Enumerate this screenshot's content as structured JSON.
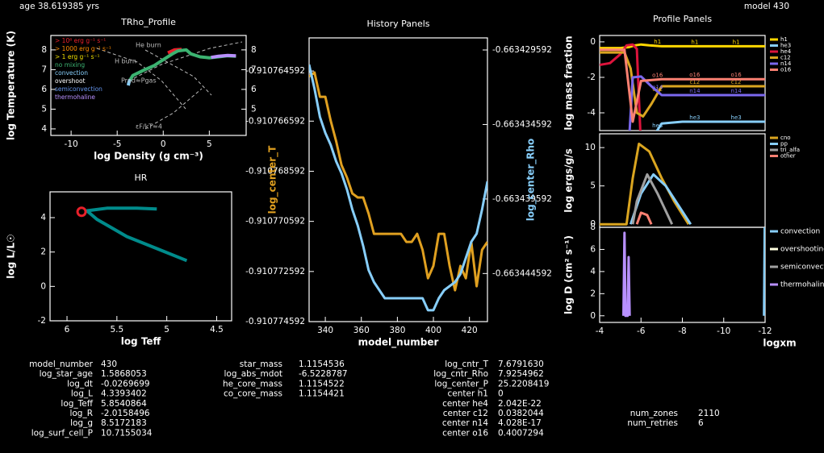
{
  "header": {
    "age": "age 38.619385 yrs",
    "model": "model 430"
  },
  "chart_data": [
    {
      "type": "line",
      "title": "TRho_Profile",
      "xlabel": "log Density (g cm⁻³)",
      "ylabel": "log Temperature (K)",
      "xlim": [
        -12.2,
        9
      ],
      "ylim": [
        3.67,
        8.73
      ],
      "xticks": [
        -10,
        -5,
        0,
        5
      ],
      "yticks": [
        4,
        5,
        6,
        7,
        8
      ],
      "y2lim": [
        3.67,
        8.73
      ],
      "y2ticks": [
        8,
        7,
        6,
        5
      ],
      "legend": "upper left",
      "annotations": [
        "He burn",
        "H burn",
        "Prad≈Pgas",
        "εF/kT≈4"
      ],
      "series": [
        {
          "name": "> 10⁶ erg g⁻¹ s⁻¹",
          "color": "#e8202a",
          "x": [
            0.5,
            1.2,
            2.0
          ],
          "values": [
            7.85,
            8.0,
            8.03
          ]
        },
        {
          "name": "> 1000 erg g⁻¹ s⁻¹",
          "color": "#ff8c00",
          "x": [],
          "values": []
        },
        {
          "name": "> 1 erg g⁻¹ s⁻¹",
          "color": "#f0e000",
          "x": [],
          "values": []
        },
        {
          "name": "no mixing",
          "color": "#3cb371",
          "x": [
            -3.7,
            -3.3,
            -2,
            -1,
            0,
            1,
            1.6,
            2.5,
            3,
            4,
            5,
            6,
            7,
            7.9
          ],
          "values": [
            6.4,
            6.7,
            7.0,
            7.2,
            7.5,
            7.8,
            7.95,
            8.0,
            7.8,
            7.65,
            7.6,
            7.65,
            7.7,
            7.68
          ]
        },
        {
          "name": "convection",
          "color": "#87cefa",
          "x": [
            -3.8,
            -3.7,
            -3.6
          ],
          "values": [
            6.2,
            6.4,
            6.5
          ]
        },
        {
          "name": "overshoot",
          "color": "#ffffff",
          "x": [],
          "values": []
        },
        {
          "name": "semiconvection",
          "color": "#6495ed",
          "x": [],
          "values": []
        },
        {
          "name": "thermohaline",
          "color": "#b890ff",
          "x": [
            5.2,
            6,
            7,
            7.9
          ],
          "values": [
            7.62,
            7.68,
            7.72,
            7.7
          ]
        }
      ]
    },
    {
      "type": "line",
      "title": "HR",
      "xlabel": "log Teff",
      "ylabel": "log L/L☉",
      "xlim": [
        6.17,
        4.35
      ],
      "ylim": [
        -2,
        5.5
      ],
      "xticks": [
        6,
        5.5,
        5,
        4.5
      ],
      "yticks": [
        -2,
        0,
        2,
        4
      ],
      "series": [
        {
          "color": "#008b8b",
          "x": [
            4.8,
            5.1,
            5.4,
            5.7,
            5.8,
            5.6,
            5.3,
            5.1
          ],
          "values": [
            1.5,
            2.2,
            2.9,
            3.9,
            4.4,
            4.55,
            4.55,
            4.5
          ]
        },
        {
          "color": "#e8202a",
          "marker": "circle",
          "x": [
            5.854
          ],
          "values": [
            4.339
          ]
        }
      ]
    },
    {
      "type": "line",
      "title": "History Panels",
      "xlabel": "model_number",
      "ylabel": "log_center_T",
      "y2label": "log_center_Rho",
      "xlim": [
        331,
        430
      ],
      "ylim": [
        -0.910774592,
        -0.91076327
      ],
      "y2lim": [
        -0.66344782,
        -0.66342878
      ],
      "xticks": [
        340,
        360,
        380,
        400,
        420
      ],
      "yticks": [
        -0.910764592,
        -0.910766592,
        -0.910768592,
        -0.910770592,
        -0.910772592,
        -0.910774592
      ],
      "y2ticks": [
        -0.663429592,
        -0.663434592,
        -0.663439592,
        -0.663444592
      ],
      "series": [
        {
          "name": "log_center_T",
          "color": "#e0a020",
          "x": [
            331,
            334,
            337,
            340,
            343,
            346,
            349,
            352,
            355,
            358,
            361,
            364,
            367,
            370,
            373,
            376,
            379,
            382,
            385,
            388,
            391,
            394,
            397,
            400,
            403,
            406,
            409,
            412,
            415,
            418,
            421,
            424,
            427,
            430
          ],
          "values": [
            -0.91076481,
            -0.91076465,
            -0.91076562,
            -0.91076562,
            -0.91076658,
            -0.91076739,
            -0.91076835,
            -0.91076884,
            -0.91076948,
            -0.91076964,
            -0.91076964,
            -0.91077028,
            -0.91077109,
            -0.91077109,
            -0.91077109,
            -0.91077109,
            -0.91077109,
            -0.91077109,
            -0.91077141,
            -0.91077141,
            -0.91077109,
            -0.91077173,
            -0.91077286,
            -0.91077237,
            -0.91077109,
            -0.91077109,
            -0.91077237,
            -0.91077334,
            -0.91077237,
            -0.91077286,
            -0.91077141,
            -0.91077318,
            -0.91077173,
            -0.91077141
          ]
        },
        {
          "name": "log_center_Rho",
          "color": "#87cefa",
          "axis": "y2",
          "x": [
            331,
            334,
            337,
            340,
            343,
            346,
            349,
            352,
            355,
            358,
            361,
            364,
            367,
            370,
            373,
            376,
            379,
            382,
            385,
            388,
            391,
            394,
            397,
            400,
            403,
            406,
            409,
            412,
            415,
            418,
            421,
            424,
            427,
            430
          ],
          "values": [
            -0.66343057,
            -0.66343219,
            -0.66343408,
            -0.66343516,
            -0.66343597,
            -0.66343706,
            -0.66343787,
            -0.66343895,
            -0.6634403,
            -0.66344138,
            -0.66344274,
            -0.66344436,
            -0.66344517,
            -0.66344571,
            -0.66344625,
            -0.66344625,
            -0.66344625,
            -0.66344625,
            -0.66344625,
            -0.66344625,
            -0.66344625,
            -0.66344625,
            -0.66344706,
            -0.66344706,
            -0.66344625,
            -0.66344571,
            -0.66344544,
            -0.66344517,
            -0.66344463,
            -0.66344355,
            -0.66344247,
            -0.66344192,
            -0.6634403,
            -0.66343841
          ]
        }
      ]
    },
    {
      "type": "line",
      "title": "Profile Panels",
      "ylabel": "log mass fraction",
      "xlim": [
        -4,
        -12
      ],
      "ylim": [
        -5,
        0.36
      ],
      "yticks": [
        0,
        -2,
        -4
      ],
      "legend": "right",
      "line_labels": true,
      "series": [
        {
          "name": "h1",
          "color": "#ffd700",
          "x": [
            -4,
            -5,
            -5.4,
            -5.7,
            -6.0,
            -6.4,
            -7,
            -12
          ],
          "values": [
            -0.35,
            -0.35,
            -0.3,
            -0.2,
            -0.15,
            -0.2,
            -0.25,
            -0.25
          ]
        },
        {
          "name": "he3",
          "color": "#87cefa",
          "x": [
            -4,
            -6,
            -6.5,
            -7,
            -8,
            -12
          ],
          "values": [
            -6,
            -6,
            -5.5,
            -4.6,
            -4.5,
            -4.5
          ]
        },
        {
          "name": "he4",
          "color": "#dc143c",
          "x": [
            -4,
            -4.5,
            -5,
            -5.3,
            -5.6,
            -5.8,
            -6.0
          ],
          "values": [
            -1.3,
            -1.2,
            -0.7,
            -0.2,
            -0.15,
            -0.4,
            -6
          ]
        },
        {
          "name": "c12",
          "color": "#daa520",
          "x": [
            -4,
            -5.2,
            -5.5,
            -5.8,
            -6.1,
            -6.5,
            -7,
            -12
          ],
          "values": [
            -0.6,
            -0.6,
            -1.5,
            -4,
            -4.2,
            -3.5,
            -2.5,
            -2.5
          ]
        },
        {
          "name": "n14",
          "color": "#7b68ee",
          "x": [
            -4,
            -5.4,
            -5.6,
            -6,
            -6.5,
            -7,
            -12
          ],
          "values": [
            -6,
            -6,
            -2,
            -1.95,
            -2.5,
            -3,
            -3
          ]
        },
        {
          "name": "o16",
          "color": "#fa8072",
          "x": [
            -4,
            -5.2,
            -5.6,
            -6,
            -7,
            -12
          ],
          "values": [
            -0.45,
            -0.45,
            -4.5,
            -2.2,
            -2.1,
            -2.1
          ]
        }
      ]
    },
    {
      "type": "line",
      "ylabel": "log ergs/g/s",
      "xlim": [
        -4,
        -12
      ],
      "ylim": [
        -0.4,
        11.8
      ],
      "yticks": [
        0,
        5,
        10
      ],
      "legend": "right",
      "series": [
        {
          "name": "cno",
          "color": "#daa520",
          "x": [
            -4,
            -5.3,
            -5.6,
            -5.9,
            -6.4,
            -7,
            -7.6,
            -8.3
          ],
          "values": [
            0,
            0,
            6,
            10.5,
            9.5,
            6,
            3,
            0
          ]
        },
        {
          "name": "pp",
          "color": "#87cefa",
          "x": [
            -5.5,
            -6,
            -6.6,
            -7.2,
            -7.8,
            -8.4
          ],
          "values": [
            0,
            4,
            6.5,
            5,
            2.5,
            0
          ]
        },
        {
          "name": "tri_alfa",
          "color": "#a0a0a0",
          "x": [
            -5.6,
            -5.8,
            -6.3,
            -6.8,
            -7.5
          ],
          "values": [
            0,
            3,
            6.5,
            4,
            0
          ]
        },
        {
          "name": "other",
          "color": "#fa8072",
          "x": [
            -5.8,
            -6,
            -6.3,
            -6.5
          ],
          "values": [
            0,
            1.5,
            1.2,
            0
          ]
        }
      ]
    },
    {
      "type": "line",
      "xlabel": "logxm",
      "ylabel": "log D (cm² s⁻¹)",
      "xlim": [
        -4,
        -12
      ],
      "ylim": [
        -0.6,
        8
      ],
      "xticks": [
        -4,
        -6,
        -8,
        -10,
        -12
      ],
      "yticks": [
        0,
        2,
        4,
        6,
        8
      ],
      "legend": "right",
      "series": [
        {
          "name": "convection",
          "color": "#87cefa",
          "x": [
            -11.95,
            -12
          ],
          "values": [
            0,
            12
          ]
        },
        {
          "name": "overshooting",
          "color": "#ffffe0",
          "x": [],
          "values": []
        },
        {
          "name": "semiconvection",
          "color": "#a0a0a0",
          "x": [],
          "values": []
        },
        {
          "name": "thermohaline",
          "color": "#b890ff",
          "x": [
            -5.15,
            -5.2,
            -5.25,
            -5.35,
            -5.4,
            -5.45
          ],
          "values": [
            0,
            7.5,
            0,
            0,
            5.3,
            0
          ]
        }
      ]
    }
  ],
  "summary": [
    [
      [
        "model_number",
        "430"
      ],
      [
        "log_star_age",
        "1.5868053"
      ],
      [
        "log_dt",
        "-0.0269699"
      ],
      [
        "log_L",
        "4.3393402"
      ],
      [
        "log_Teff",
        "5.8540864"
      ],
      [
        "log_R",
        "-2.0158496"
      ],
      [
        "log_g",
        "8.5172183"
      ],
      [
        "log_surf_cell_P",
        "10.7155034"
      ]
    ],
    [
      [
        "star_mass",
        "1.1154536"
      ],
      [
        "log_abs_mdot",
        "-6.5228787"
      ],
      [
        "he_core_mass",
        "1.1154522"
      ],
      [
        "co_core_mass",
        "1.1154421"
      ]
    ],
    [
      [
        "log_cntr_T",
        "7.6791630"
      ],
      [
        "log_cntr_Rho",
        "7.9254962"
      ],
      [
        "log_center_P",
        "25.2208419"
      ],
      [
        "center h1",
        "0"
      ],
      [
        "center he4",
        "2.042E-22"
      ],
      [
        "center c12",
        "0.0382044"
      ],
      [
        "center n14",
        "4.028E-17"
      ],
      [
        "center o16",
        "0.4007294"
      ]
    ],
    [
      [
        "num_zones",
        "2110"
      ],
      [
        "num_retries",
        "6"
      ]
    ]
  ]
}
